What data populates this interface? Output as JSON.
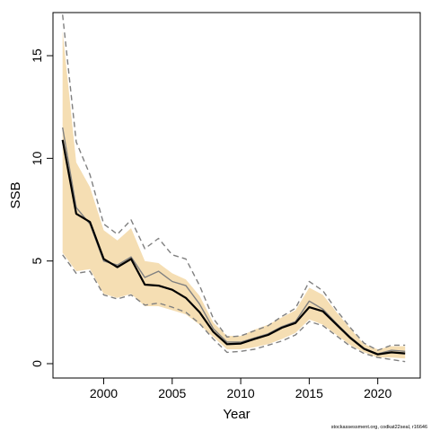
{
  "chart_data": {
    "type": "line",
    "title": "",
    "xlabel": "Year",
    "ylabel": "SSB",
    "xlim": [
      1996.3,
      2023.1
    ],
    "ylim": [
      -0.7,
      17.1
    ],
    "x_ticks": [
      2000,
      2005,
      2010,
      2015,
      2020
    ],
    "y_ticks": [
      0,
      5,
      10,
      15
    ],
    "grid": false,
    "legend": "none",
    "credit": "stockassessment.org, codkat22seal, r16646",
    "x": [
      1997,
      1998,
      1999,
      2000,
      2001,
      2002,
      2003,
      2004,
      2005,
      2006,
      2007,
      2008,
      2009,
      2010,
      2011,
      2012,
      2013,
      2014,
      2015,
      2016,
      2017,
      2018,
      2019,
      2020,
      2021,
      2022
    ],
    "series": [
      {
        "role": "confidence-band",
        "color": "#f5deb3",
        "lower": [
          5.4,
          4.5,
          4.6,
          3.4,
          3.2,
          3.4,
          2.8,
          2.8,
          2.6,
          2.4,
          1.9,
          1.3,
          0.7,
          0.7,
          0.8,
          0.95,
          1.2,
          1.5,
          2.15,
          1.9,
          1.4,
          0.9,
          0.55,
          0.3,
          0.3,
          0.25
        ],
        "upper": [
          16.2,
          9.8,
          8.6,
          6.5,
          6.0,
          6.6,
          5.0,
          4.9,
          4.4,
          4.1,
          3.3,
          2.0,
          1.35,
          1.35,
          1.65,
          1.9,
          2.25,
          2.6,
          3.7,
          3.35,
          2.5,
          1.7,
          0.95,
          0.7,
          0.85,
          0.85
        ]
      },
      {
        "role": "estimate",
        "color": "#000000",
        "values": [
          10.9,
          7.3,
          6.9,
          5.1,
          4.7,
          5.1,
          3.85,
          3.8,
          3.6,
          3.2,
          2.5,
          1.55,
          0.95,
          0.98,
          1.2,
          1.4,
          1.75,
          1.98,
          2.75,
          2.55,
          1.9,
          1.25,
          0.72,
          0.45,
          0.55,
          0.5
        ]
      },
      {
        "role": "comparison-estimate",
        "color": "#808080",
        "values": [
          11.5,
          7.6,
          6.8,
          5.0,
          4.8,
          5.2,
          4.2,
          4.5,
          4.0,
          3.8,
          2.9,
          1.7,
          1.05,
          1.05,
          1.25,
          1.45,
          1.8,
          2.05,
          3.05,
          2.65,
          1.95,
          1.3,
          0.75,
          0.48,
          0.65,
          0.6
        ]
      },
      {
        "role": "comparison-interval-lower",
        "color": "#808080",
        "values": [
          5.3,
          4.4,
          4.5,
          3.35,
          3.15,
          3.35,
          2.85,
          2.95,
          2.75,
          2.5,
          1.95,
          1.2,
          0.55,
          0.6,
          0.7,
          0.9,
          1.1,
          1.4,
          2.05,
          1.85,
          1.35,
          0.85,
          0.5,
          0.3,
          0.2,
          0.1
        ]
      },
      {
        "role": "comparison-interval-upper",
        "color": "#808080",
        "values": [
          17.0,
          10.8,
          9.2,
          6.8,
          6.3,
          7.0,
          5.6,
          6.1,
          5.3,
          5.1,
          3.8,
          2.2,
          1.3,
          1.35,
          1.6,
          1.85,
          2.3,
          2.7,
          4.0,
          3.55,
          2.6,
          1.75,
          1.0,
          0.65,
          0.9,
          0.9
        ]
      }
    ]
  }
}
